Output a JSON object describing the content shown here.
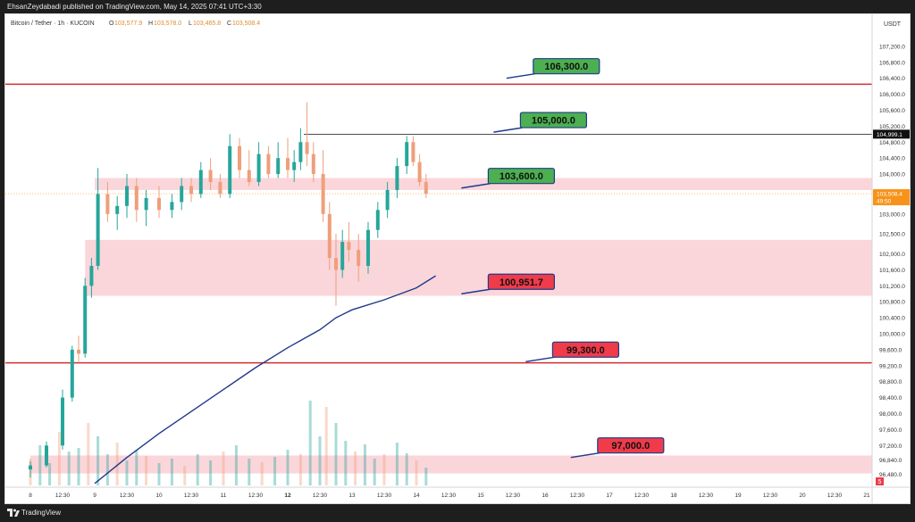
{
  "header": {
    "publish_line": "EhsanZeydabadi published on TradingView.com, May 14, 2025 07:41 UTC+3:30"
  },
  "legend": {
    "symbol": "Bitcoin / Tether · 1h · KUCOIN",
    "o_label": "O",
    "o_value": "103,577.9",
    "h_label": "H",
    "h_value": "103,578.0",
    "l_label": "L",
    "l_value": "103,465.8",
    "c_label": "C",
    "c_value": "103,508.4"
  },
  "footer": {
    "brand": "TradingView"
  },
  "colors": {
    "up": "#26a69a",
    "down": "#ef9f7a",
    "ma": "#1e3a8a",
    "resistance_line": "#d32f2f",
    "zone_fill": "#f8c8cf",
    "label_green": "#4caf50",
    "label_red": "#ef3b4a",
    "price_tag": "#f7931a"
  },
  "chart_data": {
    "type": "candlestick",
    "currency": "USDT",
    "y_range": [
      96200,
      107600
    ],
    "y_ticks": [
      {
        "value": 107200,
        "label": "107,200.0"
      },
      {
        "value": 106800,
        "label": "106,800.0"
      },
      {
        "value": 106400,
        "label": "106,400.0"
      },
      {
        "value": 106000,
        "label": "106,000.0"
      },
      {
        "value": 105600,
        "label": "105,600.0"
      },
      {
        "value": 105200,
        "label": "105,200.0"
      },
      {
        "value": 104800,
        "label": "104,800.0"
      },
      {
        "value": 104400,
        "label": "104,400.0"
      },
      {
        "value": 104000,
        "label": "104,000.0"
      },
      {
        "value": 103000,
        "label": "103,000.0"
      },
      {
        "value": 102500,
        "label": "102,500.0"
      },
      {
        "value": 102000,
        "label": "102,000.0"
      },
      {
        "value": 101600,
        "label": "101,600.0"
      },
      {
        "value": 101200,
        "label": "101,200.0"
      },
      {
        "value": 100800,
        "label": "100,800.0"
      },
      {
        "value": 100400,
        "label": "100,400.0"
      },
      {
        "value": 100000,
        "label": "100,000.0"
      },
      {
        "value": 99600,
        "label": "99,600.0"
      },
      {
        "value": 99200,
        "label": "99,200.0"
      },
      {
        "value": 98800,
        "label": "98,800.0"
      },
      {
        "value": 98400,
        "label": "98,400.0"
      },
      {
        "value": 98000,
        "label": "98,000.0"
      },
      {
        "value": 97600,
        "label": "97,600.0"
      },
      {
        "value": 97200,
        "label": "97,200.0"
      },
      {
        "value": 96840,
        "label": "96,840.0"
      },
      {
        "value": 96480,
        "label": "96,480.0"
      }
    ],
    "x_ticks": [
      "8",
      "12:30",
      "9",
      "12:30",
      "10",
      "12:30",
      "11",
      "12:30",
      "12",
      "12:30",
      "13",
      "12:30",
      "14",
      "12:30",
      "15",
      "12:30",
      "16",
      "12:30",
      "17",
      "12:30",
      "18",
      "12:30",
      "19",
      "12:30",
      "20",
      "12:30",
      "21"
    ],
    "x_ticks_bold": [
      "12"
    ],
    "current_price": {
      "value": 103508.4,
      "label": "103,508.4",
      "countdown": "49:50"
    },
    "level_tag": {
      "value": 104999.1,
      "label": "104,999.1"
    },
    "corner_badge": "5",
    "horizontal_lines": [
      {
        "value": 106250,
        "color": "red"
      },
      {
        "value": 99270,
        "color": "red"
      }
    ],
    "high_line": {
      "value": 104999.1,
      "from_day": 12.25
    },
    "zones": [
      {
        "from": 103600,
        "to": 103900,
        "start_day": 9.0
      },
      {
        "from": 100950,
        "to": 102350,
        "start_day": 8.85
      },
      {
        "from": 96500,
        "to": 96950,
        "start_day": 8.0
      }
    ],
    "annotations": [
      {
        "text": "106,300.0",
        "value": 106300,
        "style": "green",
        "anchor_day": 15.4,
        "anchor_value": 106400
      },
      {
        "text": "105,000.0",
        "value": 105000,
        "style": "green",
        "anchor_day": 15.2,
        "anchor_value": 105050
      },
      {
        "text": "103,600.0",
        "value": 103600,
        "style": "green",
        "anchor_day": 14.7,
        "anchor_value": 103650
      },
      {
        "text": "100,951.7",
        "value": 100951.7,
        "style": "red",
        "anchor_day": 14.7,
        "anchor_value": 101000
      },
      {
        "text": "99,300.0",
        "value": 99300,
        "style": "red",
        "anchor_day": 15.7,
        "anchor_value": 99300
      },
      {
        "text": "97,000.0",
        "value": 97000,
        "style": "red",
        "anchor_day": 16.4,
        "anchor_value": 96900
      }
    ],
    "candles": [
      [
        8.0,
        96600,
        96800,
        96400,
        96700
      ],
      [
        8.25,
        96700,
        97300,
        96650,
        97200
      ],
      [
        8.5,
        97200,
        98600,
        97100,
        98400
      ],
      [
        8.65,
        98400,
        99700,
        98300,
        99600
      ],
      [
        8.75,
        99600,
        99950,
        99300,
        99500
      ],
      [
        8.85,
        99500,
        101400,
        99400,
        101200
      ],
      [
        8.95,
        101200,
        101900,
        100900,
        101700
      ],
      [
        9.05,
        101700,
        104150,
        101600,
        103500
      ],
      [
        9.2,
        103500,
        103800,
        102800,
        103000
      ],
      [
        9.35,
        103000,
        103450,
        102600,
        103200
      ],
      [
        9.5,
        103200,
        104000,
        102900,
        103700
      ],
      [
        9.65,
        103700,
        103900,
        102800,
        103100
      ],
      [
        9.8,
        103100,
        103600,
        102700,
        103400
      ],
      [
        10.0,
        103400,
        103700,
        102900,
        103100
      ],
      [
        10.2,
        103100,
        103500,
        102900,
        103300
      ],
      [
        10.35,
        103300,
        103900,
        103100,
        103700
      ],
      [
        10.5,
        103700,
        103900,
        103300,
        103500
      ],
      [
        10.65,
        103500,
        104300,
        103400,
        104100
      ],
      [
        10.8,
        104100,
        104400,
        103600,
        103800
      ],
      [
        10.95,
        103800,
        104000,
        103400,
        103500
      ],
      [
        11.1,
        103500,
        105000,
        103400,
        104700
      ],
      [
        11.25,
        104700,
        104900,
        103900,
        104100
      ],
      [
        11.4,
        104100,
        104600,
        103700,
        103800
      ],
      [
        11.55,
        103800,
        104800,
        103700,
        104500
      ],
      [
        11.7,
        104500,
        104700,
        103900,
        104000
      ],
      [
        11.85,
        104000,
        104800,
        103900,
        104400
      ],
      [
        12.0,
        104400,
        104900,
        103900,
        104100
      ],
      [
        12.1,
        104100,
        104600,
        103800,
        104300
      ],
      [
        12.2,
        104300,
        105150,
        104100,
        104800
      ],
      [
        12.3,
        104800,
        105800,
        104200,
        104500
      ],
      [
        12.4,
        104500,
        104800,
        103800,
        104000
      ],
      [
        12.55,
        104000,
        104600,
        102800,
        103000
      ],
      [
        12.65,
        103000,
        103300,
        101600,
        101900
      ],
      [
        12.75,
        101900,
        102500,
        100700,
        101600
      ],
      [
        12.85,
        101600,
        102600,
        101400,
        102300
      ],
      [
        12.95,
        102300,
        102800,
        101800,
        102100
      ],
      [
        13.1,
        102100,
        102500,
        101300,
        101700
      ],
      [
        13.25,
        101700,
        102800,
        101500,
        102600
      ],
      [
        13.4,
        102600,
        103300,
        102400,
        103100
      ],
      [
        13.55,
        103100,
        103800,
        102900,
        103600
      ],
      [
        13.7,
        103600,
        104400,
        103400,
        104200
      ],
      [
        13.85,
        104200,
        104950,
        104000,
        104800
      ],
      [
        13.95,
        104800,
        104950,
        104200,
        104300
      ],
      [
        14.05,
        104300,
        104500,
        103700,
        103800
      ],
      [
        14.15,
        103800,
        104000,
        103400,
        103508.4
      ]
    ],
    "moving_average": [
      [
        9.0,
        96250
      ],
      [
        9.5,
        96900
      ],
      [
        10.0,
        97500
      ],
      [
        10.5,
        98050
      ],
      [
        11.0,
        98600
      ],
      [
        11.5,
        99150
      ],
      [
        12.0,
        99650
      ],
      [
        12.5,
        100100
      ],
      [
        12.75,
        100400
      ],
      [
        13.0,
        100600
      ],
      [
        13.5,
        100850
      ],
      [
        14.0,
        101150
      ],
      [
        14.3,
        101450
      ]
    ],
    "volume": [
      [
        8.0,
        30
      ],
      [
        8.15,
        45
      ],
      [
        8.3,
        25
      ],
      [
        8.45,
        60
      ],
      [
        8.6,
        38
      ],
      [
        8.75,
        42
      ],
      [
        8.9,
        70
      ],
      [
        9.05,
        55
      ],
      [
        9.2,
        35
      ],
      [
        9.35,
        48
      ],
      [
        9.5,
        28
      ],
      [
        9.65,
        40
      ],
      [
        9.8,
        33
      ],
      [
        10.0,
        25
      ],
      [
        10.2,
        30
      ],
      [
        10.4,
        22
      ],
      [
        10.6,
        35
      ],
      [
        10.8,
        28
      ],
      [
        11.0,
        38
      ],
      [
        11.2,
        45
      ],
      [
        11.4,
        30
      ],
      [
        11.6,
        26
      ],
      [
        11.8,
        32
      ],
      [
        12.0,
        40
      ],
      [
        12.2,
        35
      ],
      [
        12.35,
        95
      ],
      [
        12.5,
        55
      ],
      [
        12.6,
        88
      ],
      [
        12.75,
        70
      ],
      [
        12.9,
        50
      ],
      [
        13.05,
        38
      ],
      [
        13.2,
        46
      ],
      [
        13.35,
        30
      ],
      [
        13.5,
        35
      ],
      [
        13.7,
        48
      ],
      [
        13.85,
        36
      ],
      [
        14.0,
        28
      ],
      [
        14.15,
        20
      ]
    ]
  }
}
